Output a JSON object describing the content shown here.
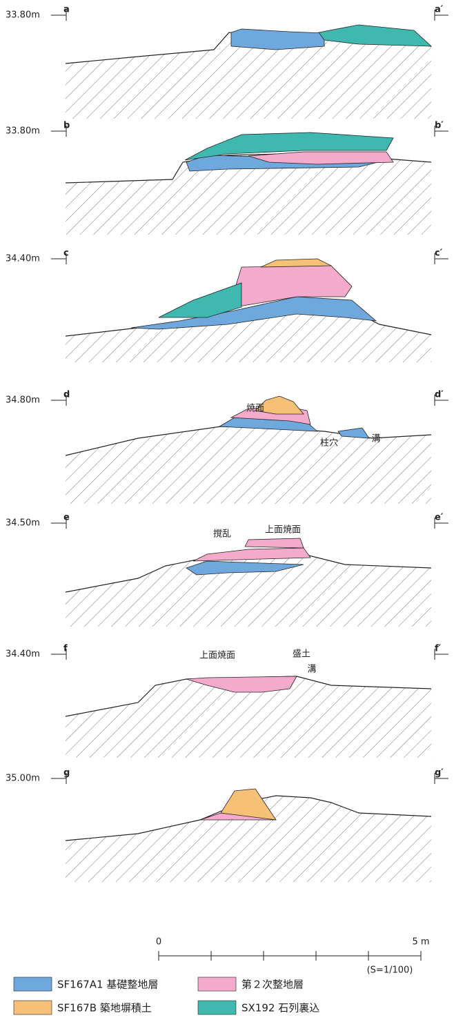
{
  "sections": [
    {
      "elevation": "33.80m",
      "left": "a",
      "right": "a′",
      "notes": []
    },
    {
      "elevation": "33.80m",
      "left": "b",
      "right": "b′",
      "notes": []
    },
    {
      "elevation": "34.40m",
      "left": "c",
      "right": "c′",
      "notes": []
    },
    {
      "elevation": "34.80m",
      "left": "d",
      "right": "d′",
      "notes": [
        "焼面",
        "柱穴",
        "溝"
      ]
    },
    {
      "elevation": "34.50m",
      "left": "e",
      "right": "e′",
      "notes": [
        "撹乱",
        "上面焼面"
      ]
    },
    {
      "elevation": "34.40m",
      "left": "f",
      "right": "f′",
      "notes": [
        "上面焼面",
        "盛土",
        "溝"
      ]
    },
    {
      "elevation": "35.00m",
      "left": "g",
      "right": "g′",
      "notes": []
    }
  ],
  "scale": {
    "start": "0",
    "end": "5 m",
    "ratio": "(S=1/100)"
  },
  "legend": [
    {
      "label": "SF167A1 基礎整地層",
      "color": "#6fa8dc"
    },
    {
      "label": "第２次整地層",
      "color": "#f4aacb"
    },
    {
      "label": "SF167B 築地塀積土",
      "color": "#f6c177"
    },
    {
      "label": "SX192 石列裏込",
      "color": "#3fb8b0"
    }
  ]
}
